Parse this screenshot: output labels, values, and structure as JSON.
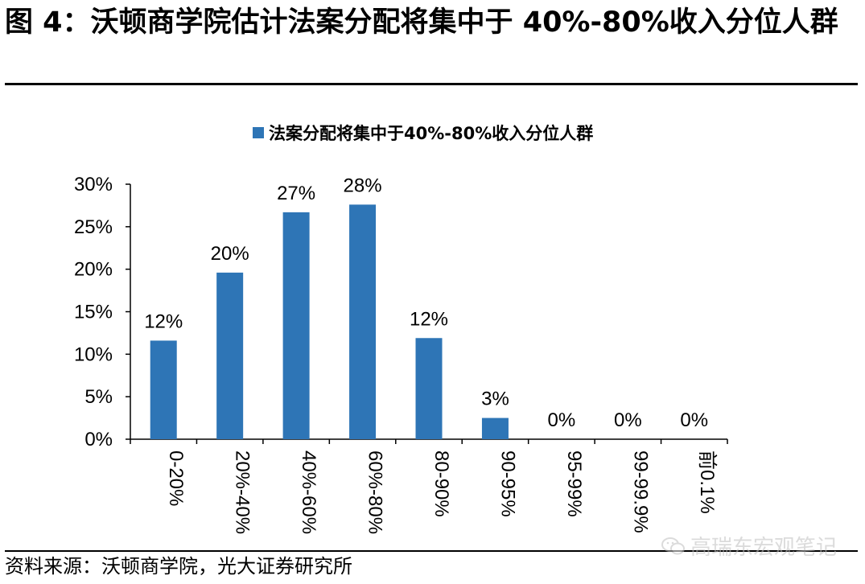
{
  "figure": {
    "title": "图 4：沃顿商学院估计法案分配将集中于 40%-80%收入分位人群",
    "source": "资料来源：沃顿商学院，光大证券研究所",
    "watermark": "高瑞东宏观笔记",
    "watermark_icon": "wechat-icon"
  },
  "colors": {
    "bar": "#2e75b6",
    "axis": "#000000"
  },
  "chart_data": {
    "type": "bar",
    "legend": {
      "label": "法案分配将集中于40%-80%收入分位人群",
      "position": "top-center"
    },
    "categories": [
      "0-20%",
      "20%-40%",
      "40%-60%",
      "60%-80%",
      "80-90%",
      "90-95%",
      "95-99%",
      "99-99.9%",
      "前0.1%"
    ],
    "series": [
      {
        "name": "法案分配将集中于40%-80%收入分位人群",
        "values": [
          11.6,
          19.6,
          26.7,
          27.6,
          11.9,
          2.5,
          0,
          0,
          0
        ]
      }
    ],
    "data_labels": [
      "12%",
      "20%",
      "27%",
      "28%",
      "12%",
      "3%",
      "0%",
      "0%",
      "0%"
    ],
    "yticks": [
      "0%",
      "5%",
      "10%",
      "15%",
      "20%",
      "25%",
      "30%"
    ],
    "ylim": [
      0,
      30
    ],
    "grid": false,
    "category_label_rotation": "vertical"
  }
}
